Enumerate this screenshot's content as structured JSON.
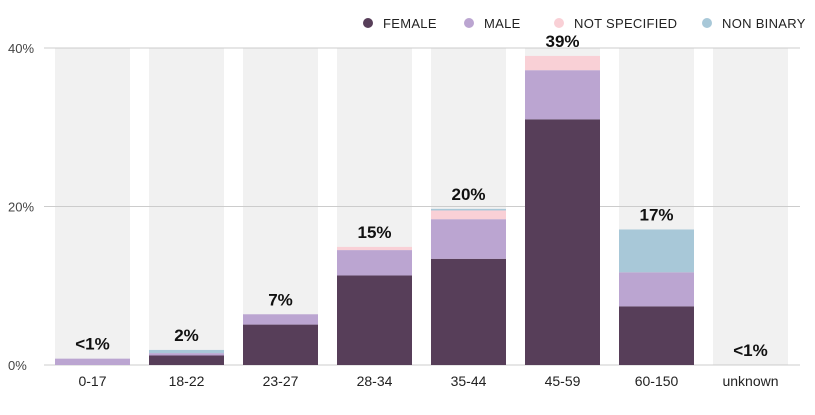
{
  "chart_data": {
    "type": "bar",
    "stacked": true,
    "categories": [
      "0-17",
      "18-22",
      "23-27",
      "28-34",
      "35-44",
      "45-59",
      "60-150",
      "unknown"
    ],
    "series": [
      {
        "name": "FEMALE",
        "color": "#573e59",
        "values": [
          0,
          1.2,
          5.1,
          11.3,
          13.4,
          31.0,
          7.4,
          0
        ]
      },
      {
        "name": "MALE",
        "color": "#bba5d1",
        "values": [
          0.8,
          0.3,
          1.3,
          3.2,
          5.0,
          6.2,
          4.3,
          0
        ]
      },
      {
        "name": "NOT SPECIFIED",
        "color": "#f9d0d6",
        "values": [
          0,
          0,
          0,
          0.4,
          1.1,
          1.8,
          0,
          0
        ]
      },
      {
        "name": "NON BINARY",
        "color": "#a8c8d8",
        "values": [
          0,
          0.4,
          0,
          0,
          0.2,
          0,
          5.4,
          0
        ]
      }
    ],
    "totals": [
      "<1%",
      "2%",
      "7%",
      "15%",
      "20%",
      "39%",
      "17%",
      "<1%"
    ],
    "yticks": [
      "0%",
      "20%",
      "40%"
    ],
    "ylim": [
      0,
      40
    ],
    "grid": true,
    "legend": "top-right",
    "background_column_color": "#f1f1f1",
    "grid_color": "#cccccc"
  }
}
